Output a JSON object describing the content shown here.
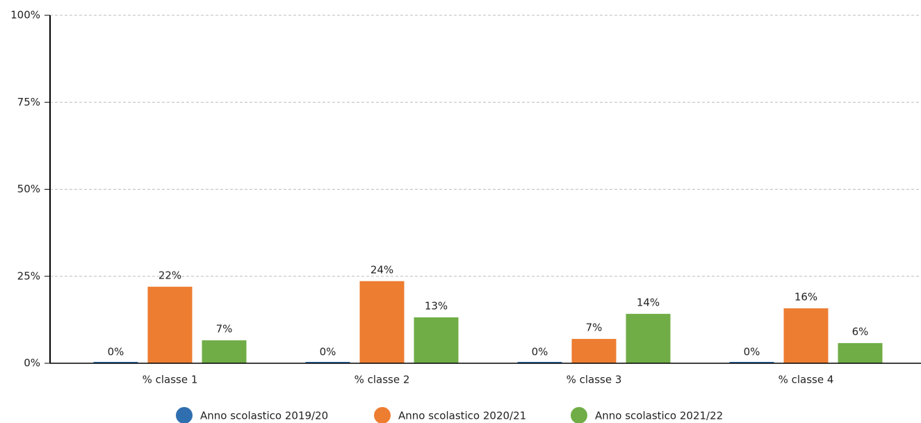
{
  "chart_data": {
    "type": "bar",
    "categories": [
      "% classe 1",
      "% classe 2",
      "% classe 3",
      "% classe 4"
    ],
    "series": [
      {
        "name": "Anno scolastico 2019/20",
        "color": "#2f6fb0",
        "values": [
          0,
          0,
          0,
          0
        ],
        "value_labels": [
          "0%",
          "0%",
          "0%",
          "0%"
        ]
      },
      {
        "name": "Anno scolastico 2020/21",
        "color": "#ed7d31",
        "values": [
          22,
          23.6,
          7,
          15.8
        ],
        "value_labels": [
          "22%",
          "24%",
          "7%",
          "16%"
        ]
      },
      {
        "name": "Anno scolastico 2021/22",
        "color": "#70ad47",
        "values": [
          6.6,
          13.2,
          14.2,
          5.8
        ],
        "value_labels": [
          "7%",
          "13%",
          "14%",
          "6%"
        ]
      }
    ],
    "ylim": [
      0,
      100
    ],
    "yticks": [
      {
        "value": 0,
        "label": "0%"
      },
      {
        "value": 25,
        "label": "25%"
      },
      {
        "value": 50,
        "label": "50%"
      },
      {
        "value": 75,
        "label": "75%"
      },
      {
        "value": 100,
        "label": "100%"
      }
    ],
    "grid": true,
    "legend": "bottom"
  }
}
